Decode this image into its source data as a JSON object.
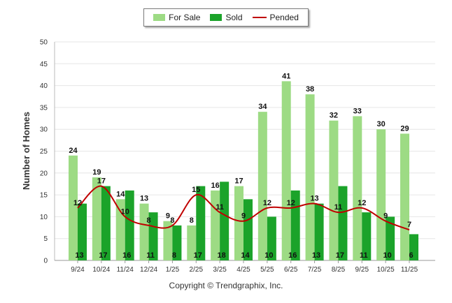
{
  "legend": {
    "for_sale": "For Sale",
    "sold": "Sold",
    "pended": "Pended"
  },
  "copyright": "Copyright © Trendgraphix, Inc.",
  "chart_data": {
    "type": "bar",
    "title": "",
    "xlabel": "",
    "ylabel": "Number of Homes",
    "ylim": [
      0,
      50
    ],
    "yticks": [
      0,
      5,
      10,
      15,
      20,
      25,
      30,
      35,
      40,
      45,
      50
    ],
    "grid": true,
    "legend_position": "top-center",
    "categories": [
      "9/24",
      "10/24",
      "11/24",
      "12/24",
      "1/25",
      "2/25",
      "3/25",
      "4/25",
      "5/25",
      "6/25",
      "7/25",
      "8/25",
      "9/25",
      "10/25",
      "11/25"
    ],
    "series": [
      {
        "name": "For Sale",
        "type": "bar",
        "color": "#9ddb84",
        "values": [
          24,
          19,
          14,
          13,
          9,
          8,
          16,
          17,
          34,
          41,
          38,
          32,
          33,
          30,
          29
        ]
      },
      {
        "name": "Sold",
        "type": "bar",
        "color": "#1ba32a",
        "values": [
          13,
          17,
          16,
          11,
          8,
          17,
          18,
          14,
          10,
          16,
          13,
          17,
          11,
          10,
          6
        ]
      },
      {
        "name": "Pended",
        "type": "line",
        "color": "#c00000",
        "values": [
          12,
          17,
          10,
          8,
          8,
          15,
          11,
          9,
          12,
          12,
          13,
          11,
          12,
          9,
          7
        ]
      }
    ]
  }
}
